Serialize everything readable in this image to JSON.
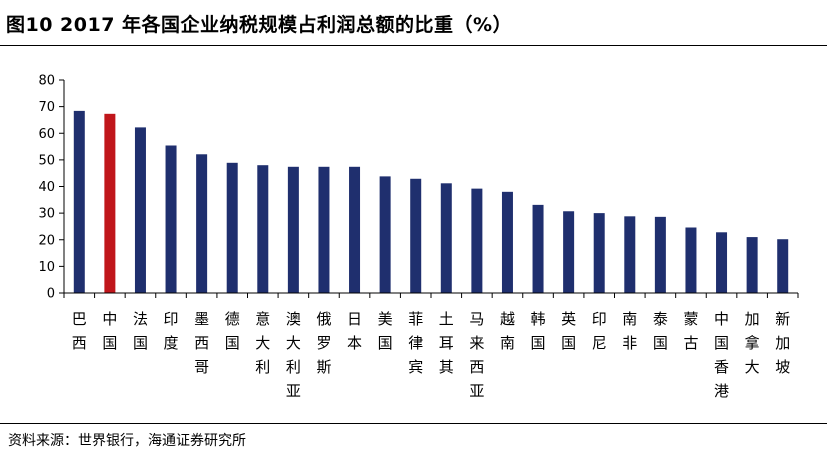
{
  "title": "图10 2017 年各国企业纳税规模占利润总额的比重（%）",
  "source": "资料来源：世界银行，海通证券研究所",
  "colors": {
    "bar": "#1F2F6E",
    "highlight": "#C0161B",
    "axis": "#000000"
  },
  "chart_data": {
    "type": "bar",
    "categories": [
      "巴西",
      "中国",
      "法国",
      "印度",
      "墨西哥",
      "德国",
      "意大利",
      "澳大利亚",
      "俄罗斯",
      "日本",
      "美国",
      "菲律宾",
      "土耳其",
      "马来西亚",
      "越南",
      "韩国",
      "英国",
      "印尼",
      "南非",
      "泰国",
      "蒙古",
      "中国香港",
      "加拿大",
      "新加坡"
    ],
    "values": [
      68.4,
      67.3,
      62.2,
      55.4,
      52.1,
      48.9,
      48.0,
      47.4,
      47.4,
      47.4,
      43.8,
      42.9,
      41.2,
      39.2,
      38.0,
      33.1,
      30.7,
      30.0,
      28.8,
      28.6,
      24.6,
      22.8,
      21.0,
      20.2
    ],
    "highlight_index": 1,
    "ylim": [
      0,
      80
    ],
    "yticks": [
      "0",
      "10",
      "20",
      "30",
      "40",
      "50",
      "60",
      "70",
      "80"
    ],
    "xlabel": "",
    "ylabel": "",
    "grid": false,
    "legend": "none"
  }
}
